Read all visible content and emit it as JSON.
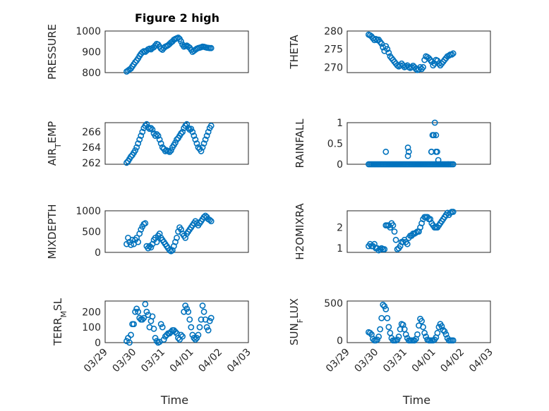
{
  "figure": {
    "title": "Figure 2 high"
  },
  "colors": {
    "marker": "#0072BD",
    "axis": "#262626",
    "grid": "#b0b0b0"
  },
  "chart_data": [
    {
      "id": "pressure",
      "type": "scatter",
      "ylabel": "PRESSURE",
      "ylabel_sub": "",
      "ylabel_rest": "",
      "ylim": [
        800,
        1000
      ],
      "yticks": [
        800,
        900,
        1000
      ],
      "yticklabels": [
        "800",
        "900",
        "1000"
      ],
      "xlim": [
        "03/29",
        "04/03"
      ],
      "xticklabels": [],
      "xlabel": "",
      "x": [
        0.75,
        0.8,
        0.85,
        0.9,
        0.95,
        1.0,
        1.05,
        1.1,
        1.15,
        1.2,
        1.25,
        1.3,
        1.35,
        1.4,
        1.45,
        1.5,
        1.55,
        1.6,
        1.65,
        1.7,
        1.75,
        1.8,
        1.85,
        1.9,
        1.95,
        2.0,
        2.05,
        2.1,
        2.15,
        2.2,
        2.25,
        2.3,
        2.35,
        2.4,
        2.45,
        2.5,
        2.55,
        2.6,
        2.65,
        2.7,
        2.75,
        2.8,
        2.85,
        2.9,
        2.95,
        3.0,
        3.05,
        3.1,
        3.15,
        3.2,
        3.25,
        3.3,
        3.35,
        3.4,
        3.45,
        3.5,
        3.55,
        3.6,
        3.65,
        3.7
      ],
      "y": [
        805,
        810,
        815,
        820,
        830,
        840,
        850,
        858,
        868,
        880,
        890,
        898,
        903,
        900,
        906,
        912,
        915,
        912,
        918,
        922,
        930,
        938,
        935,
        925,
        915,
        910,
        918,
        925,
        928,
        932,
        938,
        945,
        950,
        958,
        962,
        965,
        968,
        962,
        950,
        935,
        925,
        928,
        930,
        925,
        920,
        910,
        900,
        905,
        910,
        915,
        918,
        920,
        922,
        925,
        924,
        922,
        920,
        919,
        918,
        918
      ]
    },
    {
      "id": "theta",
      "type": "scatter",
      "ylabel": "THETA",
      "ylabel_sub": "",
      "ylabel_rest": "",
      "ylim": [
        268.5,
        280
      ],
      "yticks": [
        270,
        275,
        280
      ],
      "yticklabels": [
        "270",
        "275",
        "280"
      ],
      "xlim": [
        "03/29",
        "04/03"
      ],
      "xticklabels": [],
      "xlabel": "",
      "x": [
        0.75,
        0.8,
        0.85,
        0.9,
        0.95,
        1.0,
        1.05,
        1.1,
        1.15,
        1.2,
        1.25,
        1.3,
        1.35,
        1.4,
        1.45,
        1.5,
        1.55,
        1.6,
        1.65,
        1.7,
        1.75,
        1.8,
        1.85,
        1.9,
        1.95,
        2.0,
        2.05,
        2.1,
        2.15,
        2.2,
        2.25,
        2.3,
        2.35,
        2.4,
        2.45,
        2.5,
        2.55,
        2.6,
        2.65,
        2.7,
        2.75,
        2.8,
        2.85,
        2.9,
        2.95,
        3.0,
        3.05,
        3.1,
        3.15,
        3.2,
        3.25,
        3.3,
        3.35,
        3.4,
        3.45,
        3.5,
        3.55,
        3.6,
        3.65,
        3.7
      ],
      "y": [
        279,
        278.8,
        278.5,
        278,
        277.5,
        277.8,
        277.5,
        277.6,
        277,
        276.5,
        275.5,
        274.5,
        275.8,
        275,
        274,
        273,
        272.5,
        272,
        271.5,
        271,
        270.5,
        270.2,
        270.5,
        271,
        270.5,
        270,
        270.2,
        270.5,
        270,
        269.8,
        270,
        270.4,
        270,
        269.5,
        269.2,
        269.4,
        270,
        269.5,
        270,
        272,
        273,
        272.8,
        272.5,
        272,
        271.5,
        270.5,
        271,
        272,
        271.8,
        271,
        270.5,
        271,
        271.5,
        272,
        272.5,
        273,
        273.2,
        273.5,
        273.5,
        273.8
      ]
    },
    {
      "id": "air_temp",
      "type": "scatter",
      "ylabel": "AIR",
      "ylabel_sub": "T",
      "ylabel_rest": "EMP",
      "ylim": [
        261.8,
        267.2
      ],
      "yticks": [
        262,
        264,
        266
      ],
      "yticklabels": [
        "262",
        "264",
        "266"
      ],
      "xlim": [
        "03/29",
        "04/03"
      ],
      "xticklabels": [],
      "xlabel": "",
      "x": [
        0.75,
        0.8,
        0.85,
        0.9,
        0.95,
        1.0,
        1.05,
        1.1,
        1.15,
        1.2,
        1.25,
        1.3,
        1.35,
        1.4,
        1.45,
        1.5,
        1.55,
        1.6,
        1.65,
        1.7,
        1.75,
        1.8,
        1.85,
        1.9,
        1.95,
        2.0,
        2.05,
        2.1,
        2.15,
        2.2,
        2.25,
        2.3,
        2.35,
        2.4,
        2.45,
        2.5,
        2.55,
        2.6,
        2.65,
        2.7,
        2.75,
        2.8,
        2.85,
        2.9,
        2.95,
        3.0,
        3.05,
        3.1,
        3.15,
        3.2,
        3.25,
        3.3,
        3.35,
        3.4,
        3.45,
        3.5,
        3.55,
        3.6,
        3.65,
        3.7
      ],
      "y": [
        262,
        262.2,
        262.5,
        262.8,
        263,
        263.3,
        263.6,
        264,
        264.5,
        265,
        265.5,
        266,
        266.5,
        266.8,
        267,
        266.6,
        266.4,
        266.5,
        266.3,
        265.8,
        265.5,
        265.7,
        265.5,
        265,
        264.5,
        264,
        263.8,
        263.5,
        263.6,
        263.5,
        263.4,
        263.6,
        264,
        264.3,
        264.6,
        265,
        265.2,
        265.5,
        265.8,
        266,
        266.5,
        266.8,
        267,
        266.5,
        266.3,
        266.4,
        266,
        265.5,
        265,
        264.5,
        264,
        263.8,
        263.5,
        264,
        264.5,
        265,
        265.5,
        266,
        266.5,
        266.8
      ]
    },
    {
      "id": "rainfall",
      "type": "scatter",
      "ylabel": "RAINFALL",
      "ylabel_sub": "",
      "ylabel_rest": "",
      "ylim": [
        0,
        1
      ],
      "yticks": [
        0,
        0.5,
        1
      ],
      "yticklabels": [
        "0",
        "0.5",
        "1"
      ],
      "xlim": [
        "03/29",
        "04/03"
      ],
      "xticklabels": [],
      "xlabel": "",
      "x": [
        0.75,
        0.8,
        0.85,
        0.9,
        0.95,
        1.0,
        1.05,
        1.1,
        1.15,
        1.2,
        1.25,
        1.3,
        1.35,
        1.4,
        1.45,
        1.5,
        1.55,
        1.6,
        1.65,
        1.7,
        1.75,
        1.8,
        1.85,
        1.9,
        1.95,
        2.0,
        2.05,
        2.1,
        2.15,
        2.2,
        2.25,
        2.3,
        2.35,
        2.4,
        2.45,
        2.5,
        2.55,
        2.6,
        2.65,
        2.7,
        2.75,
        2.8,
        2.85,
        2.9,
        2.95,
        3.0,
        3.05,
        3.1,
        3.15,
        3.2,
        3.25,
        3.3,
        3.35,
        3.4,
        3.45,
        3.5,
        3.55,
        3.6,
        3.65,
        3.7,
        1.35,
        2.12,
        2.15,
        2.12,
        2.94,
        2.98,
        2.94,
        3.02,
        3.06,
        3.1,
        3.1,
        3.14,
        3.18
      ],
      "y": [
        0,
        0,
        0,
        0,
        0,
        0,
        0,
        0,
        0,
        0,
        0,
        0,
        0,
        0,
        0,
        0,
        0,
        0,
        0,
        0,
        0,
        0,
        0,
        0,
        0,
        0,
        0,
        0,
        0,
        0,
        0,
        0,
        0,
        0,
        0,
        0,
        0,
        0,
        0,
        0,
        0,
        0,
        0,
        0,
        0,
        0,
        0,
        0,
        0,
        0,
        0,
        0,
        0,
        0,
        0,
        0,
        0,
        0,
        0,
        0,
        0.3,
        0.4,
        0.3,
        0.2,
        0.3,
        0.7,
        0.3,
        0.7,
        1.0,
        0.7,
        0.3,
        0.3,
        0.1
      ]
    },
    {
      "id": "mixdepth",
      "type": "scatter",
      "ylabel": "MIXDEPTH",
      "ylabel_sub": "",
      "ylabel_rest": "",
      "ylim": [
        0,
        1000
      ],
      "yticks": [
        0,
        500,
        1000
      ],
      "yticklabels": [
        "0",
        "500",
        "1000"
      ],
      "xlim": [
        "03/29",
        "04/03"
      ],
      "xticklabels": [],
      "xlabel": "",
      "x": [
        0.75,
        0.8,
        0.85,
        0.9,
        0.95,
        1.0,
        1.05,
        1.1,
        1.15,
        1.2,
        1.25,
        1.3,
        1.35,
        1.4,
        1.45,
        1.5,
        1.55,
        1.6,
        1.65,
        1.7,
        1.75,
        1.8,
        1.85,
        1.9,
        1.95,
        2.0,
        2.05,
        2.1,
        2.15,
        2.2,
        2.25,
        2.3,
        2.35,
        2.4,
        2.45,
        2.5,
        2.55,
        2.6,
        2.65,
        2.7,
        2.75,
        2.8,
        2.85,
        2.9,
        2.95,
        3.0,
        3.05,
        3.1,
        3.15,
        3.2,
        3.25,
        3.3,
        3.35,
        3.4,
        3.45,
        3.5,
        3.55,
        3.6,
        3.65,
        3.7
      ],
      "y": [
        200,
        350,
        250,
        180,
        300,
        200,
        300,
        350,
        250,
        450,
        550,
        620,
        680,
        700,
        150,
        100,
        150,
        120,
        200,
        300,
        350,
        250,
        400,
        450,
        350,
        300,
        250,
        200,
        150,
        100,
        50,
        30,
        50,
        150,
        250,
        350,
        500,
        600,
        550,
        450,
        400,
        350,
        450,
        500,
        550,
        600,
        650,
        700,
        750,
        700,
        650,
        700,
        750,
        800,
        850,
        880,
        850,
        800,
        780,
        750
      ]
    },
    {
      "id": "h2omixra",
      "type": "scatter",
      "ylabel": "H2OMIXRA",
      "ylabel_sub": "",
      "ylabel_rest": "",
      "ylim": [
        0.8,
        2.8
      ],
      "yticks": [
        1,
        2
      ],
      "yticklabels": [
        "1",
        "2"
      ],
      "xlim": [
        "03/29",
        "04/03"
      ],
      "xticklabels": [],
      "xlabel": "",
      "x": [
        0.75,
        0.8,
        0.85,
        0.9,
        0.95,
        1.0,
        1.05,
        1.1,
        1.15,
        1.2,
        1.25,
        1.3,
        1.35,
        1.4,
        1.45,
        1.5,
        1.55,
        1.6,
        1.65,
        1.7,
        1.75,
        1.8,
        1.85,
        1.9,
        1.95,
        2.0,
        2.05,
        2.1,
        2.15,
        2.2,
        2.25,
        2.3,
        2.35,
        2.4,
        2.45,
        2.5,
        2.55,
        2.6,
        2.65,
        2.7,
        2.75,
        2.8,
        2.85,
        2.9,
        2.95,
        3.0,
        3.05,
        3.1,
        3.15,
        3.2,
        3.25,
        3.3,
        3.35,
        3.4,
        3.45,
        3.5,
        3.55,
        3.6,
        3.65,
        3.7
      ],
      "y": [
        1.1,
        1.2,
        1.1,
        1.1,
        1.2,
        1.0,
        1.0,
        0.9,
        0.95,
        1.0,
        0.95,
        0.95,
        2.1,
        2.1,
        2.1,
        2.0,
        2.2,
        2.1,
        1.8,
        1.4,
        0.95,
        1.0,
        1.1,
        1.3,
        1.3,
        1.4,
        1.3,
        1.2,
        1.5,
        1.6,
        1.6,
        1.7,
        1.7,
        1.75,
        1.8,
        1.8,
        2.0,
        2.2,
        2.4,
        2.5,
        2.5,
        2.5,
        2.4,
        2.4,
        2.2,
        2.1,
        2.0,
        2.0,
        2.0,
        2.1,
        2.2,
        2.3,
        2.4,
        2.5,
        2.6,
        2.7,
        2.6,
        2.7,
        2.75,
        2.75
      ]
    },
    {
      "id": "terr_msl",
      "type": "scatter",
      "ylabel": "TERR",
      "ylabel_sub": "M",
      "ylabel_rest": "SL",
      "ylim": [
        0,
        270
      ],
      "yticks": [
        0,
        100,
        200
      ],
      "yticklabels": [
        "0",
        "100",
        "200"
      ],
      "xlim": [
        "03/29",
        "04/03"
      ],
      "xticklabels": [
        "03/29",
        "03/30",
        "03/31",
        "04/01",
        "04/02",
        "04/03"
      ],
      "xlabel": "Time",
      "x": [
        0.75,
        0.8,
        0.85,
        0.9,
        0.95,
        1.0,
        1.05,
        1.1,
        1.15,
        1.2,
        1.25,
        1.3,
        1.35,
        1.4,
        1.45,
        1.5,
        1.55,
        1.6,
        1.65,
        1.7,
        1.75,
        1.8,
        1.85,
        1.9,
        1.95,
        2.0,
        2.05,
        2.1,
        2.15,
        2.2,
        2.25,
        2.3,
        2.35,
        2.4,
        2.45,
        2.5,
        2.55,
        2.6,
        2.65,
        2.7,
        2.75,
        2.8,
        2.85,
        2.9,
        2.95,
        3.0,
        3.05,
        3.1,
        3.15,
        3.2,
        3.25,
        3.3,
        3.35,
        3.4,
        3.45,
        3.5,
        3.55,
        3.6,
        3.65,
        3.7
      ],
      "y": [
        10,
        30,
        0,
        50,
        120,
        120,
        200,
        220,
        200,
        160,
        150,
        150,
        160,
        250,
        200,
        180,
        100,
        140,
        170,
        90,
        30,
        10,
        0,
        5,
        120,
        100,
        20,
        40,
        50,
        60,
        60,
        70,
        80,
        80,
        70,
        60,
        30,
        20,
        50,
        40,
        200,
        240,
        220,
        200,
        150,
        100,
        50,
        30,
        20,
        30,
        50,
        100,
        150,
        240,
        200,
        150,
        100,
        80,
        140,
        160
      ]
    },
    {
      "id": "sun_flux",
      "type": "scatter",
      "ylabel": "SUN",
      "ylabel_sub": "F",
      "ylabel_rest": "LUX",
      "ylim": [
        -30,
        530
      ],
      "yticks": [
        0,
        500
      ],
      "yticklabels": [
        "0",
        "500"
      ],
      "xlim": [
        "03/29",
        "04/03"
      ],
      "xticklabels": [
        "03/29",
        "03/30",
        "03/31",
        "04/01",
        "04/02",
        "04/03"
      ],
      "xlabel": "Time",
      "x": [
        0.75,
        0.8,
        0.85,
        0.9,
        0.95,
        1.0,
        1.05,
        1.1,
        1.15,
        1.2,
        1.25,
        1.3,
        1.35,
        1.4,
        1.45,
        1.5,
        1.55,
        1.6,
        1.65,
        1.7,
        1.75,
        1.8,
        1.85,
        1.9,
        1.95,
        2.0,
        2.05,
        2.1,
        2.15,
        2.2,
        2.25,
        2.3,
        2.35,
        2.4,
        2.45,
        2.5,
        2.55,
        2.6,
        2.65,
        2.7,
        2.75,
        2.8,
        2.85,
        2.9,
        2.95,
        3.0,
        3.05,
        3.1,
        3.15,
        3.2,
        3.25,
        3.3,
        3.35,
        3.4,
        3.45,
        3.5,
        3.55,
        3.6,
        3.65,
        3.7
      ],
      "y": [
        110,
        100,
        80,
        20,
        0,
        0,
        10,
        50,
        150,
        300,
        480,
        460,
        420,
        300,
        180,
        100,
        30,
        0,
        0,
        0,
        10,
        50,
        150,
        220,
        210,
        150,
        80,
        30,
        0,
        0,
        0,
        0,
        0,
        20,
        80,
        200,
        290,
        260,
        180,
        100,
        50,
        10,
        0,
        0,
        0,
        0,
        10,
        40,
        100,
        180,
        220,
        190,
        140,
        120,
        80,
        30,
        0,
        0,
        0,
        0
      ]
    }
  ]
}
